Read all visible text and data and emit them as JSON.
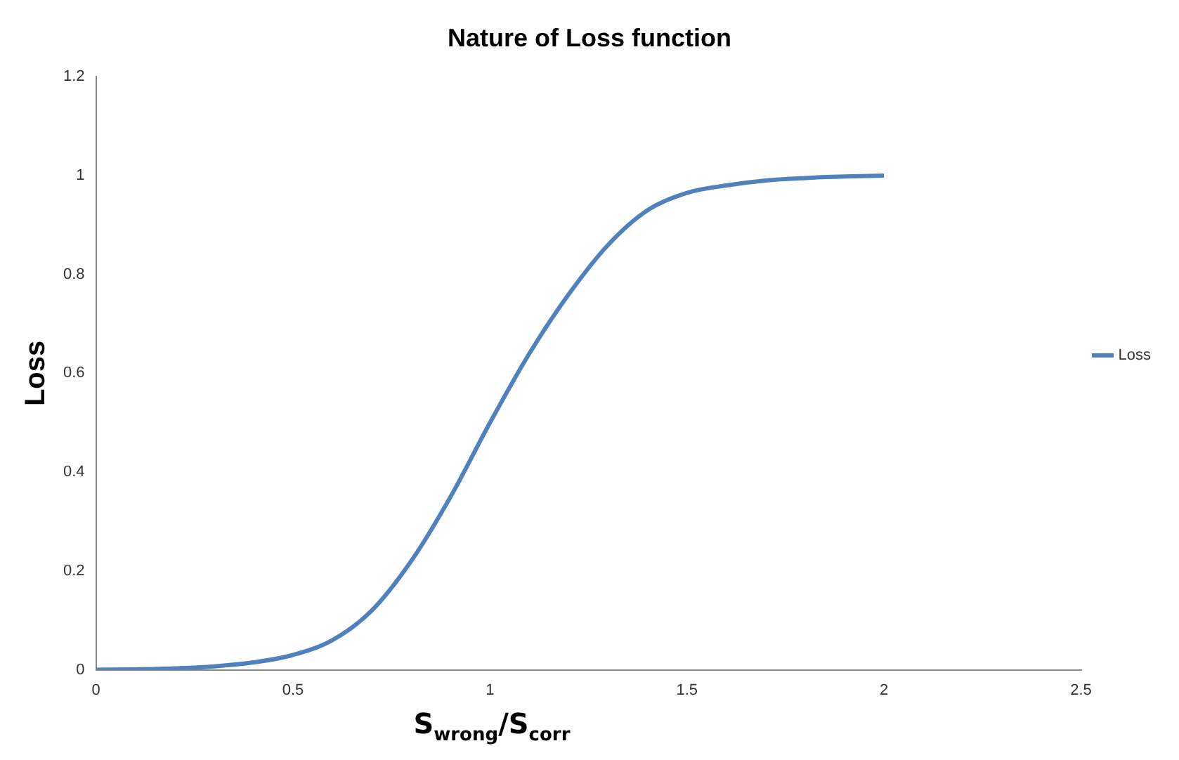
{
  "chart_data": {
    "type": "line",
    "title": "Nature of Loss function",
    "xlabel": "S$_{wrong}$/S$_{corr}$",
    "ylabel": "Loss",
    "x": [
      0,
      0.1,
      0.2,
      0.3,
      0.4,
      0.5,
      0.6,
      0.7,
      0.8,
      0.9,
      1.0,
      1.1,
      1.2,
      1.3,
      1.4,
      1.5,
      1.6,
      1.7,
      1.8,
      1.9,
      2.0
    ],
    "series": [
      {
        "name": "Loss",
        "color": "#4f81bd",
        "values": [
          0,
          0.001,
          0.003,
          0.007,
          0.015,
          0.03,
          0.06,
          0.12,
          0.22,
          0.35,
          0.5,
          0.64,
          0.76,
          0.86,
          0.93,
          0.965,
          0.98,
          0.99,
          0.995,
          0.998,
          1.0
        ]
      }
    ],
    "xlim": [
      0,
      2.5
    ],
    "xticks": [
      0,
      0.5,
      1,
      1.5,
      2,
      2.5
    ],
    "ylim": [
      0,
      1.2
    ],
    "yticks": [
      0,
      0.2,
      0.4,
      0.6,
      0.8,
      1,
      1.2
    ],
    "grid": false,
    "legend": "right",
    "marker": "none",
    "line_style": "solid"
  }
}
